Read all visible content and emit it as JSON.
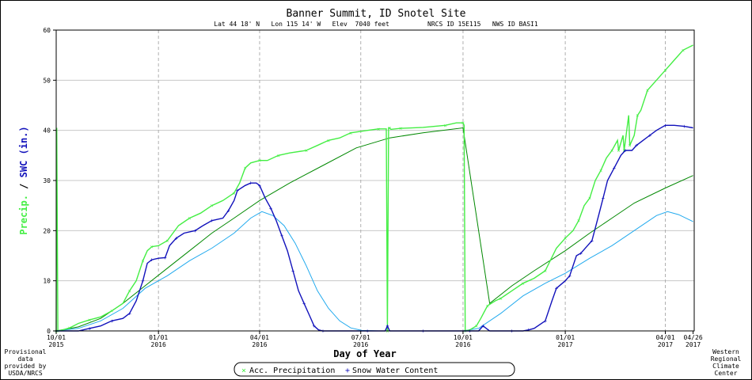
{
  "chart_data": {
    "type": "line",
    "title": "Banner Summit, ID   Snotel Site",
    "subtitle": "Lat 44 18' N   Lon 115 14' W   Elev  7040 feet          NRCS ID 15E115   NWS ID BASI1",
    "xlabel": "Day of Year",
    "ylabel_precip": "Precip.",
    "ylabel_sep": " / ",
    "ylabel_swc": "SWC (in.)",
    "ylim": [
      0,
      60
    ],
    "yticks": [
      0,
      10,
      20,
      30,
      40,
      50,
      60
    ],
    "xlim_days": [
      0,
      574
    ],
    "x_ticks": [
      {
        "day": 0,
        "l1": "10/01",
        "l2": "2015"
      },
      {
        "day": 92,
        "l1": "01/01",
        "l2": "2016"
      },
      {
        "day": 183,
        "l1": "04/01",
        "l2": "2016"
      },
      {
        "day": 274,
        "l1": "07/01",
        "l2": "2016"
      },
      {
        "day": 366,
        "l1": "10/01",
        "l2": "2016"
      },
      {
        "day": 458,
        "l1": "01/01",
        "l2": "2017"
      },
      {
        "day": 548,
        "l1": "04/01",
        "l2": "2017"
      },
      {
        "day": 573,
        "l1": "04/26",
        "l2": "2017"
      }
    ],
    "grid": true,
    "legend_position": "bottom-center",
    "series": [
      {
        "name": "Acc. Precipitation",
        "marker": "×",
        "color": "#44ee44",
        "points": [
          [
            0,
            0
          ],
          [
            0.5,
            40.5
          ],
          [
            1.5,
            0
          ],
          [
            6,
            0.2
          ],
          [
            12,
            0.6
          ],
          [
            20,
            1.5
          ],
          [
            30,
            2.2
          ],
          [
            40,
            2.8
          ],
          [
            50,
            4
          ],
          [
            60,
            5.5
          ],
          [
            66,
            8
          ],
          [
            72,
            10
          ],
          [
            78,
            14
          ],
          [
            82,
            16
          ],
          [
            86,
            16.8
          ],
          [
            92,
            17
          ],
          [
            100,
            18
          ],
          [
            110,
            21
          ],
          [
            120,
            22.5
          ],
          [
            130,
            23.5
          ],
          [
            140,
            25
          ],
          [
            150,
            26
          ],
          [
            160,
            27.5
          ],
          [
            165,
            29.5
          ],
          [
            170,
            32.5
          ],
          [
            175,
            33.5
          ],
          [
            183,
            34
          ],
          [
            190,
            34
          ],
          [
            200,
            35
          ],
          [
            210,
            35.5
          ],
          [
            225,
            36
          ],
          [
            235,
            37
          ],
          [
            245,
            38
          ],
          [
            255,
            38.5
          ],
          [
            265,
            39.5
          ],
          [
            280,
            40
          ],
          [
            290,
            40.3
          ],
          [
            297,
            40.3
          ],
          [
            298,
            0
          ],
          [
            299,
            40.5
          ],
          [
            300,
            40.5
          ],
          [
            301,
            40.2
          ],
          [
            310,
            40.4
          ],
          [
            330,
            40.6
          ],
          [
            350,
            41
          ],
          [
            360,
            41.5
          ],
          [
            366,
            41.5
          ],
          [
            367,
            41
          ],
          [
            368,
            0
          ],
          [
            372,
            0.2
          ],
          [
            378,
            1
          ],
          [
            382,
            2.5
          ],
          [
            388,
            5
          ],
          [
            395,
            6
          ],
          [
            400,
            6.5
          ],
          [
            410,
            8
          ],
          [
            420,
            9.5
          ],
          [
            430,
            10.5
          ],
          [
            440,
            12
          ],
          [
            450,
            16.5
          ],
          [
            458,
            18.5
          ],
          [
            465,
            20
          ],
          [
            470,
            22
          ],
          [
            475,
            25
          ],
          [
            480,
            26.5
          ],
          [
            485,
            30
          ],
          [
            490,
            32
          ],
          [
            495,
            34.5
          ],
          [
            500,
            36
          ],
          [
            505,
            38
          ],
          [
            506,
            36
          ],
          [
            510,
            39
          ],
          [
            511,
            36
          ],
          [
            515,
            43
          ],
          [
            516,
            37
          ],
          [
            520,
            39
          ],
          [
            523,
            43
          ],
          [
            526,
            44
          ],
          [
            532,
            48
          ],
          [
            540,
            50
          ],
          [
            548,
            52
          ],
          [
            556,
            54
          ],
          [
            564,
            56
          ],
          [
            573,
            57
          ]
        ]
      },
      {
        "name": "Snow Water Content",
        "marker": "+",
        "color": "#1111bb",
        "points": [
          [
            0,
            0
          ],
          [
            20,
            0
          ],
          [
            30,
            0.5
          ],
          [
            40,
            1
          ],
          [
            50,
            2
          ],
          [
            60,
            2.5
          ],
          [
            66,
            3.5
          ],
          [
            72,
            6
          ],
          [
            78,
            10
          ],
          [
            82,
            13.5
          ],
          [
            86,
            14.2
          ],
          [
            92,
            14.5
          ],
          [
            98,
            14.6
          ],
          [
            102,
            17
          ],
          [
            108,
            18.5
          ],
          [
            115,
            19.5
          ],
          [
            125,
            20
          ],
          [
            132,
            21
          ],
          [
            140,
            22
          ],
          [
            150,
            22.5
          ],
          [
            155,
            24
          ],
          [
            160,
            26
          ],
          [
            163,
            28
          ],
          [
            170,
            29
          ],
          [
            175,
            29.5
          ],
          [
            180,
            29.5
          ],
          [
            183,
            29
          ],
          [
            188,
            26.5
          ],
          [
            193,
            24.5
          ],
          [
            198,
            22
          ],
          [
            203,
            19
          ],
          [
            208,
            16
          ],
          [
            213,
            12
          ],
          [
            218,
            8
          ],
          [
            223,
            5.5
          ],
          [
            228,
            3
          ],
          [
            232,
            1
          ],
          [
            236,
            0.2
          ],
          [
            240,
            0
          ],
          [
            260,
            0
          ],
          [
            280,
            0
          ],
          [
            296,
            0
          ],
          [
            298,
            1
          ],
          [
            300,
            0
          ],
          [
            330,
            0
          ],
          [
            366,
            0
          ],
          [
            372,
            0
          ],
          [
            380,
            0
          ],
          [
            384,
            1
          ],
          [
            390,
            0
          ],
          [
            410,
            0
          ],
          [
            420,
            0
          ],
          [
            425,
            0.2
          ],
          [
            430,
            0.5
          ],
          [
            440,
            2
          ],
          [
            446,
            6
          ],
          [
            450,
            8.5
          ],
          [
            458,
            10
          ],
          [
            462,
            11
          ],
          [
            468,
            15
          ],
          [
            472,
            15.5
          ],
          [
            478,
            17
          ],
          [
            482,
            18
          ],
          [
            488,
            23
          ],
          [
            492,
            26.5
          ],
          [
            496,
            30
          ],
          [
            502,
            32.5
          ],
          [
            508,
            35
          ],
          [
            512,
            36
          ],
          [
            518,
            36
          ],
          [
            522,
            37
          ],
          [
            528,
            38
          ],
          [
            534,
            39
          ],
          [
            540,
            40
          ],
          [
            548,
            41
          ],
          [
            556,
            41
          ],
          [
            565,
            40.8
          ],
          [
            573,
            40.5
          ]
        ]
      },
      {
        "name": "",
        "marker": "",
        "color": "#008800",
        "points": [
          [
            0,
            0
          ],
          [
            20,
            0.8
          ],
          [
            40,
            2.5
          ],
          [
            60,
            5.5
          ],
          [
            80,
            9
          ],
          [
            100,
            12.5
          ],
          [
            120,
            16
          ],
          [
            140,
            19.5
          ],
          [
            160,
            22.5
          ],
          [
            183,
            26
          ],
          [
            210,
            29.5
          ],
          [
            240,
            33
          ],
          [
            270,
            36.5
          ],
          [
            300,
            38.5
          ],
          [
            330,
            39.5
          ],
          [
            366,
            40.5
          ],
          [
            390,
            5.5
          ],
          [
            410,
            9
          ],
          [
            430,
            12
          ],
          [
            458,
            16
          ],
          [
            480,
            19.5
          ],
          [
            500,
            22.5
          ],
          [
            520,
            25.5
          ],
          [
            548,
            28.5
          ],
          [
            573,
            31
          ]
        ]
      },
      {
        "name": "",
        "marker": "",
        "color": "#22aaee",
        "points": [
          [
            0,
            0
          ],
          [
            20,
            0.5
          ],
          [
            40,
            2
          ],
          [
            60,
            4.5
          ],
          [
            80,
            8.5
          ],
          [
            100,
            11
          ],
          [
            120,
            14
          ],
          [
            140,
            16.5
          ],
          [
            160,
            19.5
          ],
          [
            175,
            22.5
          ],
          [
            185,
            23.8
          ],
          [
            195,
            23
          ],
          [
            205,
            21
          ],
          [
            215,
            17.5
          ],
          [
            225,
            13
          ],
          [
            235,
            8
          ],
          [
            245,
            4.5
          ],
          [
            255,
            2
          ],
          [
            265,
            0.6
          ],
          [
            275,
            0.1
          ],
          [
            290,
            0
          ],
          [
            366,
            0
          ],
          [
            380,
            0.5
          ],
          [
            400,
            3.5
          ],
          [
            420,
            7
          ],
          [
            440,
            9.5
          ],
          [
            458,
            11.5
          ],
          [
            480,
            14.5
          ],
          [
            500,
            17
          ],
          [
            520,
            20
          ],
          [
            540,
            23
          ],
          [
            550,
            23.8
          ],
          [
            560,
            23.2
          ],
          [
            573,
            21.8
          ]
        ]
      }
    ]
  },
  "left_note": [
    "Provisional",
    "data",
    "provided by",
    "USDA/NRCS"
  ],
  "right_note": [
    "Western",
    "Regional",
    "Climate",
    "Center"
  ]
}
